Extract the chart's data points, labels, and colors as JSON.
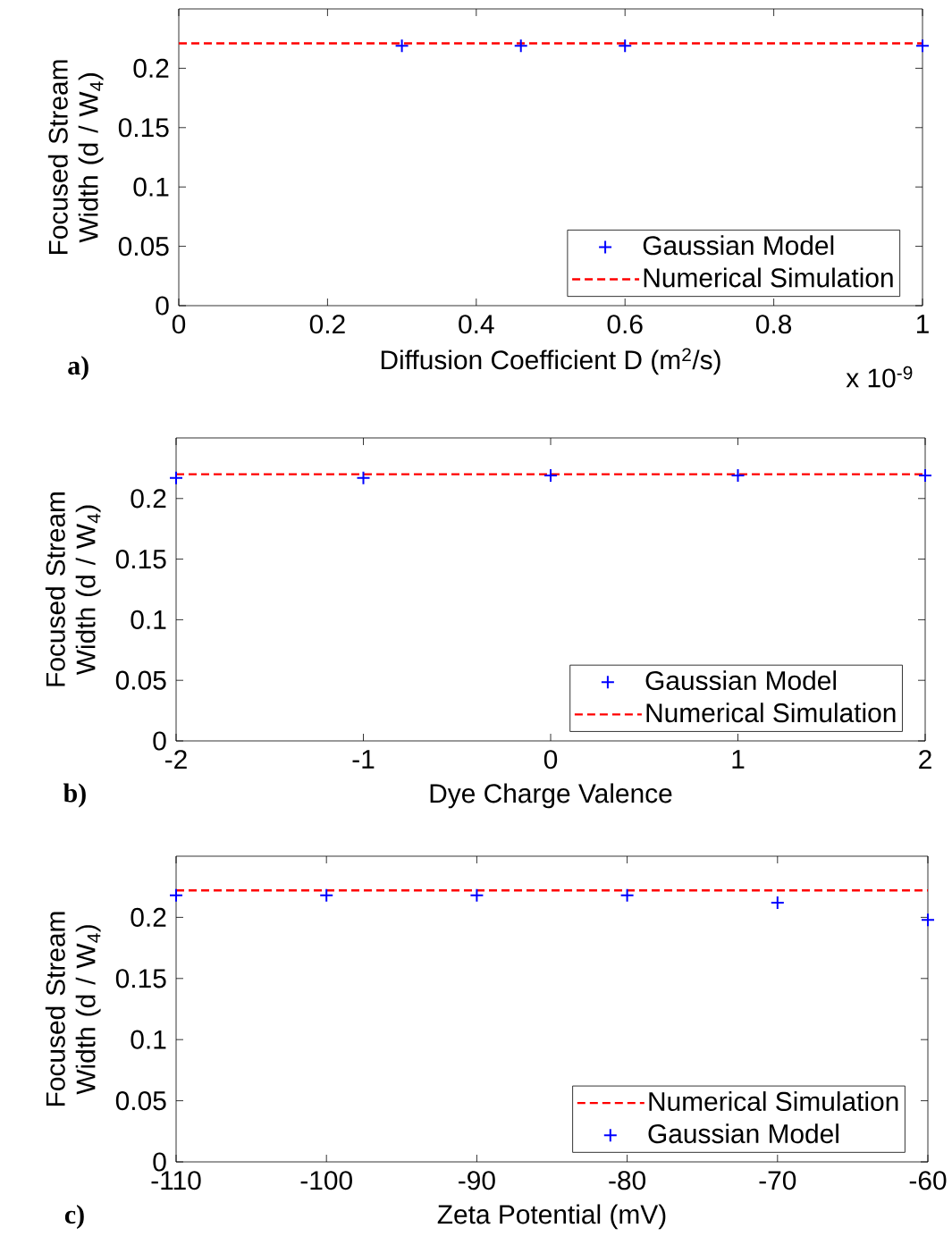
{
  "chart_data": [
    {
      "type": "scatter",
      "xlabel": "Diffusion Coefficient D (m$^{2}$/s)",
      "ylabel": "Focused Stream Width (d / W$_{4}$)",
      "annotations": [
        "a)",
        "x 10$^{-9}$"
      ],
      "xlim": [
        0,
        1
      ],
      "ylim": [
        0,
        0.25
      ],
      "xticks": [
        0,
        0.2,
        0.4,
        0.6,
        0.8,
        1
      ],
      "yticks": [
        0,
        0.05,
        0.1,
        0.15,
        0.2
      ],
      "legend": "bottom right",
      "series": [
        {
          "name": "Gaussian Model",
          "type": "scatter",
          "marker": "cross",
          "color": "#0000ff",
          "x": [
            0.3,
            0.46,
            0.6,
            1.0
          ],
          "values": [
            0.219,
            0.219,
            0.219,
            0.219
          ]
        },
        {
          "name": "Numerical Simulation",
          "type": "line",
          "line_style": "dashed",
          "color": "#ff0000",
          "x": [
            0,
            1
          ],
          "values": [
            0.221,
            0.221
          ]
        }
      ]
    },
    {
      "type": "scatter",
      "xlabel": "Dye Charge Valence",
      "ylabel": "Focused Stream Width (d / W$_{4}$)",
      "annotations": [
        "b)"
      ],
      "xlim": [
        -2,
        2
      ],
      "ylim": [
        0,
        0.25
      ],
      "xticks": [
        -2,
        -1,
        0,
        1,
        2
      ],
      "yticks": [
        0,
        0.05,
        0.1,
        0.15,
        0.2
      ],
      "legend": "bottom right",
      "series": [
        {
          "name": "Gaussian Model",
          "type": "scatter",
          "marker": "cross",
          "color": "#0000ff",
          "x": [
            -2,
            -1,
            0,
            1,
            2
          ],
          "values": [
            0.217,
            0.217,
            0.219,
            0.219,
            0.219
          ]
        },
        {
          "name": "Numerical Simulation",
          "type": "line",
          "line_style": "dashed",
          "color": "#ff0000",
          "x": [
            -2,
            2
          ],
          "values": [
            0.22,
            0.22
          ]
        }
      ]
    },
    {
      "type": "scatter",
      "xlabel": "Zeta Potential (mV)",
      "ylabel": "Focused Stream Width (d / W$_{4}$)",
      "annotations": [
        "c)"
      ],
      "xlim": [
        -110,
        -60
      ],
      "ylim": [
        0,
        0.25
      ],
      "xticks": [
        -110,
        -100,
        -90,
        -80,
        -70,
        -60
      ],
      "yticks": [
        0,
        0.05,
        0.1,
        0.15,
        0.2
      ],
      "legend": "bottom right",
      "series": [
        {
          "name": "Numerical Simulation",
          "type": "line",
          "line_style": "dashed",
          "color": "#ff0000",
          "x": [
            -110,
            -60
          ],
          "values": [
            0.222,
            0.222
          ]
        },
        {
          "name": "Gaussian Model",
          "type": "scatter",
          "marker": "cross",
          "color": "#0000ff",
          "x": [
            -110,
            -100,
            -90,
            -80,
            -70,
            -60
          ],
          "values": [
            0.218,
            0.218,
            0.218,
            0.218,
            0.212,
            0.198
          ]
        }
      ]
    }
  ]
}
